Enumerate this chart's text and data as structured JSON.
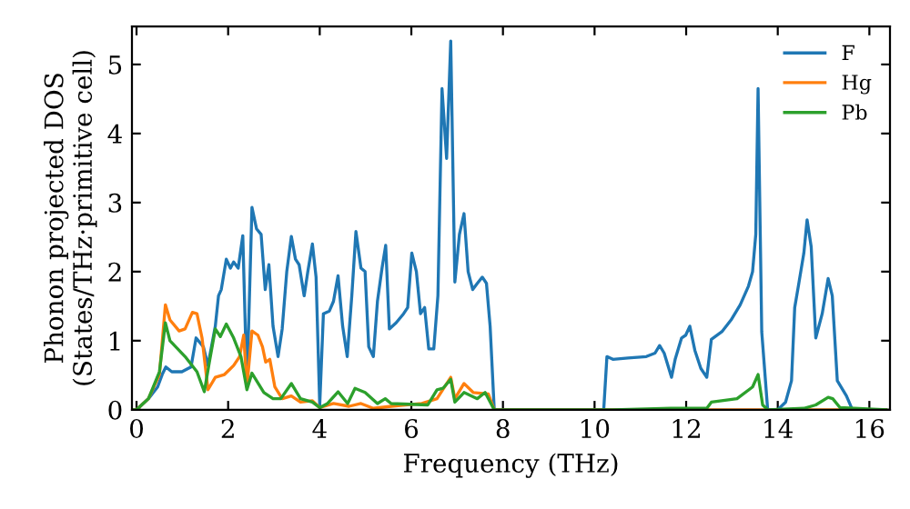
{
  "chart_data": {
    "type": "line",
    "xlabel": "Frequency (THz)",
    "ylabel": "Phonon projected DOS\n(States/THz·primitive cell)",
    "xlim": [
      -0.1,
      16.45
    ],
    "ylim": [
      0,
      5.55
    ],
    "xticks": [
      0,
      2,
      4,
      6,
      8,
      10,
      12,
      14,
      16
    ],
    "yticks": [
      0,
      1,
      2,
      3,
      4,
      5
    ],
    "grid": false,
    "legend": "top right",
    "marker": "none",
    "line_style": "solid",
    "series": [
      {
        "name": "F",
        "color": "#1f77b4",
        "x": [
          -0.1,
          0,
          0.26,
          0.46,
          0.56,
          0.64,
          0.77,
          0.99,
          1.19,
          1.3,
          1.46,
          1.56,
          1.72,
          1.79,
          1.85,
          1.96,
          2.05,
          2.12,
          2.22,
          2.32,
          2.41,
          2.52,
          2.62,
          2.72,
          2.81,
          2.89,
          2.98,
          3.09,
          3.18,
          3.28,
          3.38,
          3.47,
          3.55,
          3.66,
          3.74,
          3.84,
          3.92,
          4.0,
          4.08,
          4.21,
          4.3,
          4.4,
          4.5,
          4.6,
          4.7,
          4.79,
          4.9,
          4.99,
          5.07,
          5.17,
          5.26,
          5.36,
          5.44,
          5.52,
          5.67,
          5.83,
          5.92,
          6.01,
          6.11,
          6.2,
          6.29,
          6.38,
          6.49,
          6.58,
          6.67,
          6.77,
          6.86,
          6.95,
          7.05,
          7.15,
          7.24,
          7.34,
          7.44,
          7.55,
          7.64,
          7.72,
          7.81,
          10.2,
          10.27,
          10.4,
          10.73,
          11.13,
          11.32,
          11.42,
          11.52,
          11.68,
          11.76,
          11.9,
          11.99,
          12.08,
          12.19,
          12.32,
          12.45,
          12.55,
          12.78,
          12.98,
          13.18,
          13.36,
          13.45,
          13.52,
          13.57,
          13.65,
          13.78,
          14.0,
          14.17,
          14.3,
          14.37,
          14.46,
          14.57,
          14.64,
          14.73,
          14.83,
          14.97,
          15.1,
          15.19,
          15.3,
          15.5,
          15.63,
          16.36
        ],
        "values": [
          0,
          0,
          0.16,
          0.33,
          0.51,
          0.62,
          0.55,
          0.55,
          0.62,
          1.04,
          0.91,
          0.64,
          1.21,
          1.65,
          1.74,
          2.18,
          2.05,
          2.14,
          2.05,
          2.52,
          0.33,
          2.93,
          2.62,
          2.54,
          1.74,
          2.1,
          1.21,
          0.77,
          1.17,
          2.0,
          2.51,
          2.18,
          2.1,
          1.65,
          2.0,
          2.4,
          1.92,
          0.07,
          1.39,
          1.43,
          1.57,
          1.94,
          1.21,
          0.77,
          1.65,
          2.58,
          2.05,
          2.0,
          0.91,
          0.77,
          1.57,
          2.05,
          2.38,
          1.17,
          1.26,
          1.39,
          1.48,
          2.27,
          2.0,
          1.39,
          1.48,
          0.88,
          0.88,
          1.65,
          4.65,
          3.64,
          5.34,
          1.85,
          2.54,
          2.84,
          2.0,
          1.74,
          1.83,
          1.92,
          1.83,
          1.21,
          0,
          0,
          0.77,
          0.73,
          0.75,
          0.77,
          0.82,
          0.93,
          0.82,
          0.47,
          0.73,
          1.04,
          1.08,
          1.21,
          0.86,
          0.6,
          0.47,
          1.02,
          1.13,
          1.3,
          1.52,
          1.79,
          2.0,
          2.54,
          4.65,
          1.13,
          0,
          0,
          0.11,
          0.42,
          1.48,
          1.83,
          2.27,
          2.75,
          2.36,
          1.04,
          1.39,
          1.9,
          1.65,
          0.42,
          0.2,
          0,
          0
        ]
      },
      {
        "name": "Hg",
        "color": "#ff7f0e",
        "x": [
          -0.1,
          0,
          0.26,
          0.5,
          0.63,
          0.73,
          0.93,
          1.06,
          1.22,
          1.32,
          1.43,
          1.56,
          1.72,
          1.92,
          2.12,
          2.25,
          2.34,
          2.41,
          2.52,
          2.65,
          2.75,
          2.82,
          2.91,
          3.02,
          3.18,
          3.38,
          3.58,
          3.84,
          4.0,
          4.3,
          4.64,
          4.9,
          5.17,
          5.56,
          6.23,
          6.56,
          6.86,
          6.95,
          7.15,
          7.35,
          7.68,
          7.81,
          16.36
        ],
        "values": [
          0,
          0,
          0.16,
          0.51,
          1.52,
          1.3,
          1.14,
          1.17,
          1.41,
          1.39,
          1.04,
          0.29,
          0.47,
          0.51,
          0.64,
          0.77,
          1.08,
          0.33,
          1.14,
          1.08,
          0.91,
          0.69,
          0.73,
          0.33,
          0.16,
          0.2,
          0.11,
          0.13,
          0.03,
          0.09,
          0.05,
          0.09,
          0.02,
          0.05,
          0.09,
          0.16,
          0.47,
          0.16,
          0.38,
          0.25,
          0.23,
          0,
          0
        ]
      },
      {
        "name": "Pb",
        "color": "#2ca02c",
        "x": [
          -0.1,
          0,
          0.26,
          0.5,
          0.63,
          0.73,
          1.06,
          1.32,
          1.48,
          1.59,
          1.72,
          1.83,
          1.96,
          2.12,
          2.28,
          2.41,
          2.52,
          2.78,
          2.98,
          3.15,
          3.38,
          3.58,
          3.84,
          4.0,
          4.17,
          4.4,
          4.61,
          4.77,
          4.99,
          5.26,
          5.43,
          5.56,
          6.36,
          6.56,
          6.69,
          6.86,
          6.95,
          7.15,
          7.44,
          7.61,
          7.81,
          10.4,
          11.66,
          12.45,
          12.55,
          13.11,
          13.45,
          13.57,
          13.67,
          13.78,
          14.57,
          14.83,
          15.1,
          15.2,
          15.36,
          16.36
        ],
        "values": [
          0,
          0,
          0.16,
          0.55,
          1.26,
          1.0,
          0.77,
          0.55,
          0.26,
          0.69,
          1.17,
          1.06,
          1.24,
          1.04,
          0.77,
          0.29,
          0.53,
          0.25,
          0.16,
          0.16,
          0.38,
          0.16,
          0.11,
          0.03,
          0.09,
          0.26,
          0.09,
          0.31,
          0.25,
          0.09,
          0.16,
          0.09,
          0.07,
          0.29,
          0.31,
          0.44,
          0.11,
          0.25,
          0.16,
          0.25,
          0,
          0,
          0.02,
          0.02,
          0.11,
          0.16,
          0.33,
          0.51,
          0.07,
          0,
          0.02,
          0.07,
          0.18,
          0.16,
          0.03,
          0
        ]
      }
    ]
  }
}
